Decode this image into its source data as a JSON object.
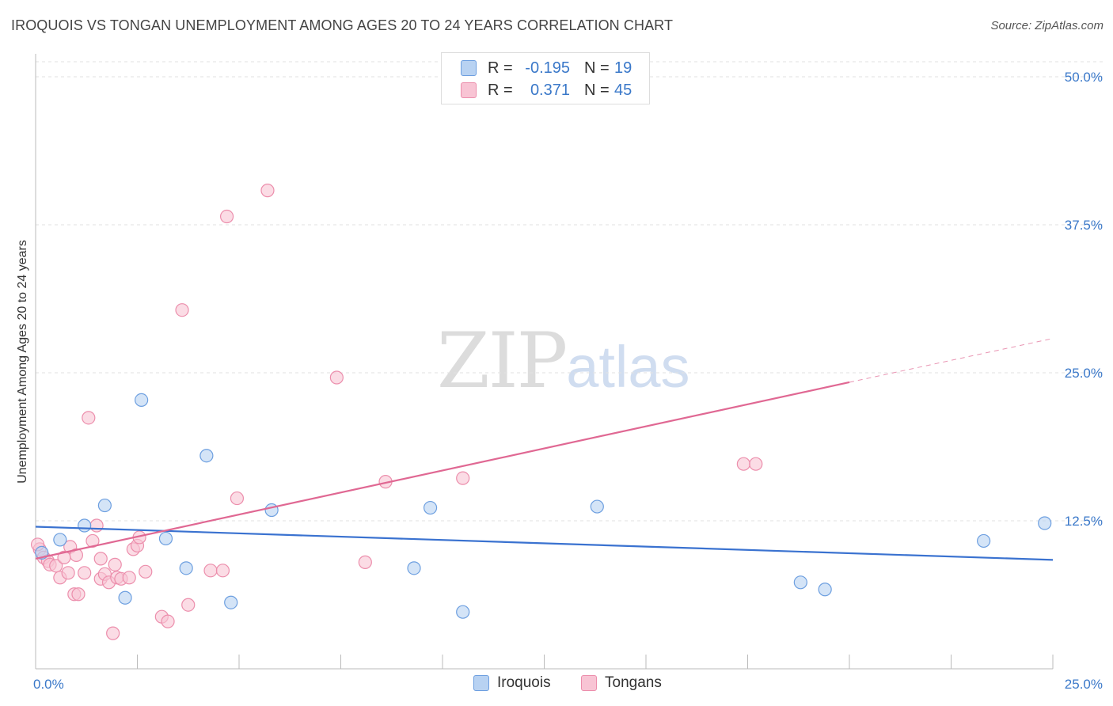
{
  "header": {
    "title": "IROQUOIS VS TONGAN UNEMPLOYMENT AMONG AGES 20 TO 24 YEARS CORRELATION CHART",
    "source": "Source: ZipAtlas.com"
  },
  "watermark": {
    "zip": "ZIP",
    "atlas": "atlas"
  },
  "legend_top": {
    "rows": [
      {
        "r_label": "R =",
        "r_value": "-0.195",
        "n_label": "N =",
        "n_value": "19"
      },
      {
        "r_label": "R =",
        "r_value": "0.371",
        "n_label": "N =",
        "n_value": "45"
      }
    ]
  },
  "legend_bottom": {
    "iroquois": "Iroquois",
    "tongans": "Tongans"
  },
  "colors": {
    "iroquois_fill": "#b8d2f2",
    "iroquois_stroke": "#6d9fe0",
    "iroquois_line": "#3a72d0",
    "tongans_fill": "#f8c4d4",
    "tongans_stroke": "#ec8eac",
    "tongans_line": "#e06893",
    "tick_label": "#3a78c9",
    "grid": "#e2e2e2"
  },
  "chart_data": {
    "type": "scatter",
    "title": "IROQUOIS VS TONGAN UNEMPLOYMENT AMONG AGES 20 TO 24 YEARS CORRELATION CHART",
    "xlabel": "",
    "ylabel": "Unemployment Among Ages 20 to 24 years",
    "xlim": [
      0,
      25
    ],
    "ylim": [
      0,
      50
    ],
    "x_tick_labels": [
      "0.0%",
      "25.0%"
    ],
    "y_ticks": [
      12.5,
      25.0,
      37.5,
      50.0
    ],
    "y_tick_labels": [
      "12.5%",
      "25.0%",
      "37.5%",
      "50.0%"
    ],
    "grid": true,
    "legend_placement": "bottom-center",
    "series": [
      {
        "name": "Iroquois",
        "points": [
          [
            0.15,
            9.8
          ],
          [
            0.6,
            10.9
          ],
          [
            1.2,
            12.1
          ],
          [
            1.7,
            13.8
          ],
          [
            2.2,
            6.0
          ],
          [
            2.6,
            22.7
          ],
          [
            3.2,
            11.0
          ],
          [
            3.7,
            8.5
          ],
          [
            4.2,
            18.0
          ],
          [
            4.8,
            5.6
          ],
          [
            5.8,
            13.4
          ],
          [
            9.3,
            8.5
          ],
          [
            9.7,
            13.6
          ],
          [
            10.5,
            4.8
          ],
          [
            13.8,
            13.7
          ],
          [
            18.8,
            7.3
          ],
          [
            19.4,
            6.7
          ],
          [
            23.3,
            10.8
          ],
          [
            24.8,
            12.3
          ]
        ],
        "trend": {
          "x": [
            0,
            25
          ],
          "y": [
            12.0,
            9.2
          ]
        }
      },
      {
        "name": "Tongans",
        "points": [
          [
            0.1,
            10.1
          ],
          [
            0.2,
            9.4
          ],
          [
            0.3,
            9.1
          ],
          [
            0.35,
            8.8
          ],
          [
            0.5,
            8.7
          ],
          [
            0.6,
            7.7
          ],
          [
            0.7,
            9.4
          ],
          [
            0.8,
            8.1
          ],
          [
            0.85,
            10.3
          ],
          [
            0.95,
            6.3
          ],
          [
            1.0,
            9.6
          ],
          [
            1.05,
            6.3
          ],
          [
            1.2,
            8.1
          ],
          [
            1.3,
            21.2
          ],
          [
            1.4,
            10.8
          ],
          [
            1.5,
            12.1
          ],
          [
            1.6,
            7.6
          ],
          [
            1.6,
            9.3
          ],
          [
            1.7,
            8.0
          ],
          [
            1.8,
            7.3
          ],
          [
            1.9,
            3.0
          ],
          [
            1.95,
            8.8
          ],
          [
            2.0,
            7.7
          ],
          [
            2.1,
            7.6
          ],
          [
            2.3,
            7.7
          ],
          [
            2.4,
            10.1
          ],
          [
            2.5,
            10.4
          ],
          [
            2.55,
            11.1
          ],
          [
            2.7,
            8.2
          ],
          [
            3.1,
            4.4
          ],
          [
            3.25,
            4.0
          ],
          [
            3.6,
            30.3
          ],
          [
            3.75,
            5.4
          ],
          [
            4.3,
            8.3
          ],
          [
            4.6,
            8.3
          ],
          [
            4.7,
            38.2
          ],
          [
            4.95,
            14.4
          ],
          [
            5.7,
            40.4
          ],
          [
            7.4,
            24.6
          ],
          [
            8.1,
            9.0
          ],
          [
            8.6,
            15.8
          ],
          [
            10.5,
            16.1
          ],
          [
            17.4,
            17.3
          ],
          [
            17.7,
            17.3
          ],
          [
            0.05,
            10.5
          ]
        ],
        "trend": {
          "x": [
            0,
            20
          ],
          "y": [
            9.3,
            24.2
          ]
        },
        "trend_extension": {
          "x": [
            20,
            25
          ],
          "y": [
            24.2,
            27.9
          ]
        }
      }
    ]
  }
}
